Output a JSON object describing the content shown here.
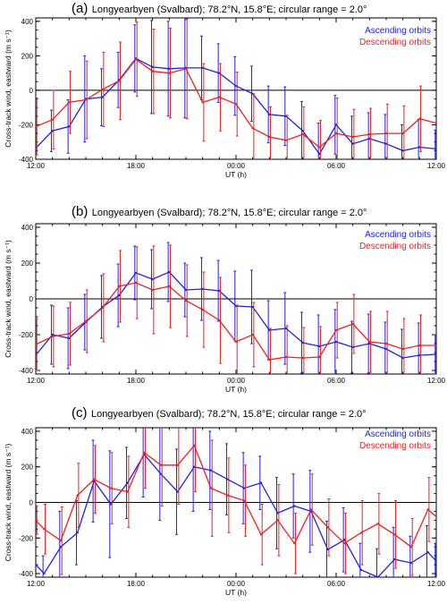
{
  "figure": {
    "panels": [
      {
        "label": "(a)",
        "title": "Longyearbyen (Svalbard); 78.2°N, 15.8°E; circular range = 2.0°",
        "ascending_label": "Ascending orbits",
        "descending_label": "Descending orbits",
        "xlabel": "UT (h)",
        "ylabel": "Cross-track wind, eastward (m s⁻¹)"
      },
      {
        "label": "(b)",
        "title": "Longyearbyen (Svalbard); 78.2°N, 15.8°E; circular range = 2.0°",
        "ascending_label": "Ascending orbits",
        "descending_label": "Descending orbits",
        "xlabel": "UT (h)",
        "ylabel": "Cross-track wind, eastward (m s⁻¹)"
      },
      {
        "label": "(c)",
        "title": "Longyearbyen (Svalbard); 78.2°N, 15.8°E; circular range = 2.0°",
        "ascending_label": "Ascending orbits",
        "descending_label": "Descending orbits",
        "xlabel": "UT (h)",
        "ylabel": "Cross-track wind, eastward (m s⁻¹)"
      }
    ]
  },
  "colors": {
    "ascending": "#2020e0",
    "descending": "#ee2020",
    "axis": "#000000",
    "zero_line": "#000000"
  },
  "chart_data": [
    {
      "type": "line",
      "xlabel": "UT (h)",
      "ylabel": "Cross-track wind, eastward (m s⁻¹)",
      "xlim": [
        12,
        36
      ],
      "ylim": [
        -400,
        420
      ],
      "xticks": [
        12,
        18,
        24,
        30,
        36
      ],
      "xtick_labels": [
        "12:00",
        "18:00",
        "00:00",
        "06:00",
        "12:00"
      ],
      "yticks": [
        -400,
        -200,
        0,
        200,
        400
      ],
      "x": [
        12.0,
        13.0,
        14.0,
        15.0,
        16.0,
        17.0,
        18.0,
        19.0,
        20.0,
        21.0,
        22.0,
        23.0,
        24.0,
        25.0,
        26.0,
        27.0,
        28.0,
        29.0,
        30.0,
        31.0,
        32.0,
        33.0,
        34.0,
        35.0,
        36.0
      ],
      "series": [
        {
          "name": "Ascending orbits",
          "y": [
            -335,
            -235,
            -210,
            -50,
            -40,
            60,
            185,
            135,
            125,
            130,
            130,
            100,
            25,
            -20,
            -140,
            -150,
            -235,
            -370,
            -200,
            -310,
            -280,
            -310,
            -350,
            -330,
            -340
          ],
          "err": [
            75,
            120,
            155,
            250,
            165,
            160,
            195,
            270,
            275,
            290,
            185,
            170,
            170,
            160,
            165,
            170,
            170,
            180,
            170,
            160,
            150,
            170,
            150,
            160,
            110
          ]
        },
        {
          "name": "Descending orbits",
          "y": [
            -210,
            -170,
            -70,
            -55,
            5,
            55,
            180,
            110,
            100,
            125,
            -70,
            -40,
            -80,
            -220,
            -270,
            -290,
            -255,
            -330,
            -250,
            -270,
            -255,
            -250,
            -250,
            -165,
            -190
          ],
          "err": [
            165,
            170,
            180,
            225,
            215,
            225,
            215,
            245,
            260,
            290,
            225,
            195,
            185,
            200,
            175,
            145,
            160,
            155,
            205,
            160,
            150,
            170,
            160,
            190,
            170
          ]
        }
      ]
    },
    {
      "type": "line",
      "xlabel": "UT (h)",
      "ylabel": "Cross-track wind, eastward (m s⁻¹)",
      "xlim": [
        12,
        36
      ],
      "ylim": [
        -420,
        420
      ],
      "xticks": [
        12,
        18,
        24,
        30,
        36
      ],
      "xtick_labels": [
        "12:00",
        "18:00",
        "00:00",
        "06:00",
        "12:00"
      ],
      "yticks": [
        -400,
        -200,
        0,
        200,
        400
      ],
      "x": [
        12.0,
        13.0,
        14.0,
        15.0,
        16.0,
        17.0,
        18.0,
        19.0,
        20.0,
        21.0,
        22.0,
        23.0,
        24.0,
        25.0,
        26.0,
        27.0,
        28.0,
        29.0,
        30.0,
        31.0,
        32.0,
        33.0,
        34.0,
        35.0,
        36.0
      ],
      "series": [
        {
          "name": "Ascending orbits",
          "y": [
            -315,
            -200,
            -220,
            -130,
            -45,
            20,
            145,
            110,
            150,
            50,
            55,
            45,
            -40,
            -45,
            -175,
            -165,
            -245,
            -265,
            -240,
            -270,
            -250,
            -280,
            -330,
            -315,
            -310
          ],
          "err": [
            110,
            165,
            170,
            155,
            175,
            175,
            150,
            165,
            165,
            150,
            175,
            170,
            195,
            205,
            165,
            200,
            170,
            175,
            180,
            145,
            165,
            150,
            160,
            180,
            110
          ]
        },
        {
          "name": "Descending orbits",
          "y": [
            -255,
            -210,
            -195,
            -125,
            -50,
            70,
            90,
            50,
            70,
            -10,
            -60,
            -120,
            -240,
            -200,
            -340,
            -325,
            -330,
            -325,
            -175,
            -140,
            -240,
            -250,
            -280,
            -260,
            -260
          ],
          "err": [
            145,
            170,
            175,
            175,
            190,
            200,
            200,
            245,
            230,
            200,
            210,
            240,
            205,
            180,
            175,
            175,
            170,
            170,
            155,
            165,
            170,
            180,
            170,
            170,
            160
          ]
        }
      ]
    },
    {
      "type": "line",
      "xlabel": "UT (h)",
      "ylabel": "Cross-track wind, eastward (m s⁻¹)",
      "xlim": [
        12,
        36
      ],
      "ylim": [
        -420,
        420
      ],
      "xticks": [
        12,
        18,
        24,
        30,
        36
      ],
      "xtick_labels": [
        "12:00",
        "18:00",
        "00:00",
        "06:00",
        "12:00"
      ],
      "yticks": [
        -400,
        -200,
        0,
        200,
        400
      ],
      "x": [
        12.0,
        12.5,
        13.5,
        14.5,
        15.5,
        16.5,
        17.5,
        18.5,
        19.5,
        20.5,
        21.5,
        22.5,
        23.5,
        24.5,
        25.5,
        26.5,
        27.5,
        28.5,
        29.5,
        30.5,
        31.5,
        32.5,
        33.5,
        34.5,
        35.5,
        36.0
      ],
      "series": [
        {
          "name": "Ascending orbits",
          "y": [
            -350,
            -400,
            -250,
            -170,
            120,
            -10,
            110,
            270,
            160,
            60,
            200,
            180,
            130,
            80,
            110,
            -60,
            -20,
            -50,
            -265,
            -210,
            -380,
            -420,
            -320,
            -340,
            -280,
            -330
          ],
          "err": [
            70,
            100,
            200,
            180,
            230,
            300,
            200,
            240,
            260,
            240,
            250,
            220,
            200,
            200,
            150,
            200,
            180,
            230,
            160,
            180,
            150,
            160,
            180,
            150,
            150,
            100
          ]
        },
        {
          "name": "Descending orbits",
          "y": [
            -100,
            -150,
            -215,
            40,
            130,
            80,
            60,
            280,
            210,
            210,
            320,
            80,
            40,
            10,
            -180,
            -100,
            -230,
            -40,
            -140,
            -230,
            -170,
            -120,
            -180,
            -250,
            -40,
            -80
          ],
          "err": [
            80,
            140,
            190,
            180,
            190,
            200,
            200,
            200,
            230,
            220,
            260,
            270,
            210,
            200,
            170,
            200,
            170,
            200,
            160,
            170,
            180,
            170,
            190,
            160,
            180,
            120
          ]
        }
      ]
    }
  ]
}
